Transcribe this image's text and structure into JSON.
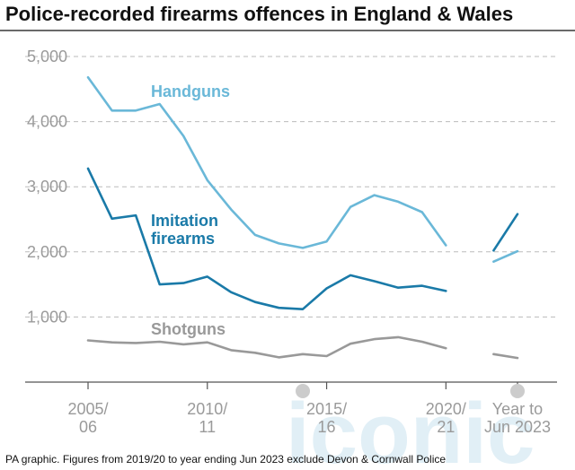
{
  "title": "Police-recorded firearms offences in England & Wales",
  "footnote": "PA graphic. Figures from 2019/20 to year ending Jun 2023 exclude Devon & Cornwall Police",
  "watermark": "iconic",
  "colors": {
    "handguns": "#6ab8d8",
    "imitation": "#1a7aa8",
    "shotguns": "#999999",
    "grid": "#bbbbbb",
    "axis": "#555555",
    "marker": "#cccccc"
  },
  "chart_data": {
    "type": "line",
    "title": "Police-recorded firearms offences in England & Wales",
    "xlabel": "",
    "ylabel": "",
    "ylim": [
      0,
      5000
    ],
    "yticks": [
      1000,
      2000,
      3000,
      4000,
      5000
    ],
    "ytick_labels": [
      "1,000",
      "2,000",
      "3,000",
      "4,000",
      "5,000"
    ],
    "xtick_labels": [
      {
        "index": 0,
        "lines": [
          "2005/",
          "06"
        ]
      },
      {
        "index": 5,
        "lines": [
          "2010/",
          "11"
        ]
      },
      {
        "index": 10,
        "lines": [
          "2015/",
          "16"
        ]
      },
      {
        "index": 15,
        "lines": [
          "2020/",
          "21"
        ]
      },
      {
        "index": 18,
        "lines": [
          "Year to",
          "Jun 2023"
        ]
      }
    ],
    "axis_markers": [
      9,
      18
    ],
    "grid": true,
    "x_points": 19,
    "series": [
      {
        "name": "Handguns",
        "label_lines": [
          "Handguns"
        ],
        "color_key": "handguns",
        "segments": [
          {
            "start": 0,
            "values": [
              4680,
              4170,
              4170,
              4270,
              3780,
              3100,
              2650,
              2260,
              2130,
              2060,
              2160,
              2690,
              2870,
              2770,
              2610,
              2100
            ]
          },
          {
            "start": 17,
            "values": [
              1850,
              2010
            ]
          }
        ]
      },
      {
        "name": "Imitation firearms",
        "label_lines": [
          "Imitation",
          "firearms"
        ],
        "color_key": "imitation",
        "segments": [
          {
            "start": 0,
            "values": [
              3280,
              2510,
              2560,
              1500,
              1520,
              1620,
              1380,
              1230,
              1140,
              1120,
              1440,
              1640,
              1550,
              1450,
              1480,
              1400
            ]
          },
          {
            "start": 17,
            "values": [
              2020,
              2580
            ]
          }
        ]
      },
      {
        "name": "Shotguns",
        "label_lines": [
          "Shotguns"
        ],
        "color_key": "shotguns",
        "segments": [
          {
            "start": 0,
            "values": [
              640,
              610,
              600,
              620,
              580,
              610,
              490,
              450,
              380,
              430,
              400,
              590,
              660,
              690,
              620,
              520
            ]
          },
          {
            "start": 17,
            "values": [
              430,
              370
            ]
          }
        ]
      }
    ]
  }
}
